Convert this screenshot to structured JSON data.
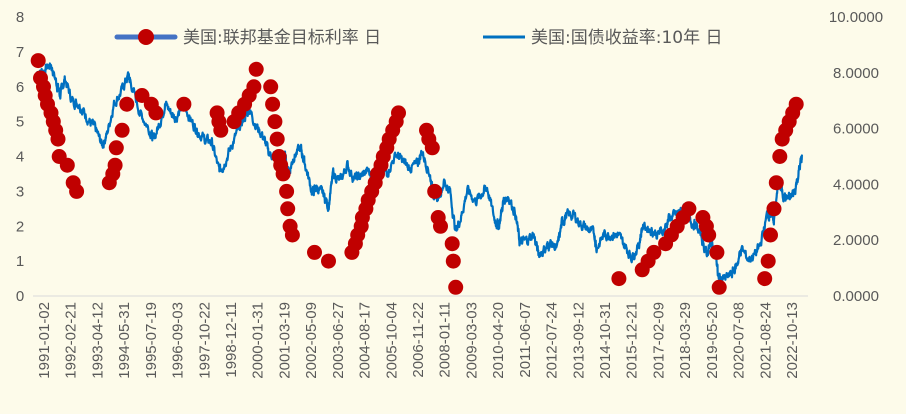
{
  "chart_data": {
    "type": "line",
    "title": "",
    "xlabel": "",
    "legend": [
      {
        "name": "美国:联邦基金目标利率 日",
        "axis": "left",
        "style": "markers",
        "color": "#c00000",
        "line_color": "#4472c4"
      },
      {
        "name": "美国:国债收益率:10年 日",
        "axis": "right",
        "style": "line",
        "color": "#0070c0"
      }
    ],
    "y_left": {
      "min": 0,
      "max": 8,
      "ticks": [
        "0",
        "1",
        "2",
        "3",
        "4",
        "5",
        "6",
        "7",
        "8"
      ]
    },
    "y_right": {
      "min": 0,
      "max": 10,
      "ticks": [
        "0.0000",
        "2.0000",
        "4.0000",
        "6.0000",
        "8.0000",
        "10.0000"
      ]
    },
    "x_range": [
      1991.0,
      2023.8
    ],
    "x_ticks": [
      "1991-01-02",
      "1992-02-21",
      "1993-04-12",
      "1994-05-31",
      "1995-07-19",
      "1996-09-03",
      "1997-10-22",
      "1998-12-11",
      "2000-01-31",
      "2001-03-19",
      "2002-05-09",
      "2003-06-27",
      "2004-08-17",
      "2005-10-04",
      "2006-11-22",
      "2008-01-11",
      "2009-03-03",
      "2010-04-20",
      "2011-06-07",
      "2012-07-24",
      "2013-09-12",
      "2014-10-31",
      "2015-12-21",
      "2017-02-09",
      "2018-03-29",
      "2019-05-20",
      "2020-07-08",
      "2021-08-24",
      "2022-10-13"
    ],
    "series": [
      {
        "name": "美国:联邦基金目标利率 日",
        "axis": "left",
        "points": [
          [
            1991.05,
            6.75
          ],
          [
            1991.15,
            6.25
          ],
          [
            1991.28,
            6.0
          ],
          [
            1991.35,
            5.75
          ],
          [
            1991.45,
            5.5
          ],
          [
            1991.6,
            5.25
          ],
          [
            1991.7,
            5.0
          ],
          [
            1991.8,
            4.75
          ],
          [
            1991.9,
            4.5
          ],
          [
            1991.95,
            4.0
          ],
          [
            1992.3,
            3.75
          ],
          [
            1992.55,
            3.25
          ],
          [
            1992.7,
            3.0
          ],
          [
            1994.1,
            3.25
          ],
          [
            1994.25,
            3.5
          ],
          [
            1994.35,
            3.75
          ],
          [
            1994.4,
            4.25
          ],
          [
            1994.65,
            4.75
          ],
          [
            1994.85,
            5.5
          ],
          [
            1995.5,
            5.75
          ],
          [
            1995.9,
            5.5
          ],
          [
            1996.1,
            5.25
          ],
          [
            1997.3,
            5.5
          ],
          [
            1998.72,
            5.25
          ],
          [
            1998.8,
            5.0
          ],
          [
            1998.88,
            4.75
          ],
          [
            1999.45,
            5.0
          ],
          [
            1999.65,
            5.25
          ],
          [
            1999.9,
            5.5
          ],
          [
            2000.1,
            5.75
          ],
          [
            2000.3,
            6.0
          ],
          [
            2000.4,
            6.5
          ],
          [
            2001.02,
            6.0
          ],
          [
            2001.1,
            5.5
          ],
          [
            2001.2,
            5.0
          ],
          [
            2001.3,
            4.5
          ],
          [
            2001.38,
            4.0
          ],
          [
            2001.45,
            3.75
          ],
          [
            2001.55,
            3.5
          ],
          [
            2001.7,
            3.0
          ],
          [
            2001.75,
            2.5
          ],
          [
            2001.85,
            2.0
          ],
          [
            2001.95,
            1.75
          ],
          [
            2002.9,
            1.25
          ],
          [
            2003.5,
            1.0
          ],
          [
            2004.5,
            1.25
          ],
          [
            2004.65,
            1.5
          ],
          [
            2004.75,
            1.75
          ],
          [
            2004.9,
            2.0
          ],
          [
            2004.95,
            2.25
          ],
          [
            2005.1,
            2.5
          ],
          [
            2005.2,
            2.75
          ],
          [
            2005.35,
            3.0
          ],
          [
            2005.5,
            3.25
          ],
          [
            2005.6,
            3.5
          ],
          [
            2005.75,
            3.75
          ],
          [
            2005.85,
            4.0
          ],
          [
            2006.0,
            4.25
          ],
          [
            2006.1,
            4.5
          ],
          [
            2006.25,
            4.75
          ],
          [
            2006.4,
            5.0
          ],
          [
            2006.5,
            5.25
          ],
          [
            2007.7,
            4.75
          ],
          [
            2007.8,
            4.5
          ],
          [
            2007.95,
            4.25
          ],
          [
            2008.05,
            3.0
          ],
          [
            2008.2,
            2.25
          ],
          [
            2008.3,
            2.0
          ],
          [
            2008.8,
            1.5
          ],
          [
            2008.85,
            1.0
          ],
          [
            2008.95,
            0.25
          ],
          [
            2015.95,
            0.5
          ],
          [
            2016.95,
            0.75
          ],
          [
            2017.2,
            1.0
          ],
          [
            2017.45,
            1.25
          ],
          [
            2017.95,
            1.5
          ],
          [
            2018.2,
            1.75
          ],
          [
            2018.45,
            2.0
          ],
          [
            2018.7,
            2.25
          ],
          [
            2018.95,
            2.5
          ],
          [
            2019.55,
            2.25
          ],
          [
            2019.7,
            2.0
          ],
          [
            2019.8,
            1.75
          ],
          [
            2020.15,
            1.25
          ],
          [
            2020.25,
            0.25
          ],
          [
            2022.2,
            0.5
          ],
          [
            2022.35,
            1.0
          ],
          [
            2022.45,
            1.75
          ],
          [
            2022.6,
            2.5
          ],
          [
            2022.7,
            3.25
          ],
          [
            2022.85,
            4.0
          ],
          [
            2022.95,
            4.5
          ],
          [
            2023.1,
            4.75
          ],
          [
            2023.25,
            5.0
          ],
          [
            2023.4,
            5.25
          ],
          [
            2023.55,
            5.5
          ]
        ]
      },
      {
        "name": "美国:国债收益率:10年 日",
        "axis": "right",
        "points": [
          [
            1991.0,
            8.0
          ],
          [
            1991.3,
            8.1
          ],
          [
            1991.6,
            8.3
          ],
          [
            1991.85,
            7.6
          ],
          [
            1992.0,
            7.2
          ],
          [
            1992.2,
            7.8
          ],
          [
            1992.5,
            7.0
          ],
          [
            1992.8,
            6.9
          ],
          [
            1993.0,
            6.6
          ],
          [
            1993.3,
            6.2
          ],
          [
            1993.5,
            6.0
          ],
          [
            1993.8,
            5.4
          ],
          [
            1994.0,
            5.8
          ],
          [
            1994.3,
            6.9
          ],
          [
            1994.6,
            7.3
          ],
          [
            1994.9,
            7.9
          ],
          [
            1995.0,
            7.7
          ],
          [
            1995.4,
            6.6
          ],
          [
            1995.8,
            6.0
          ],
          [
            1996.0,
            5.6
          ],
          [
            1996.3,
            6.3
          ],
          [
            1996.5,
            6.9
          ],
          [
            1996.8,
            6.5
          ],
          [
            1997.0,
            6.4
          ],
          [
            1997.3,
            6.9
          ],
          [
            1997.6,
            6.3
          ],
          [
            1997.9,
            5.9
          ],
          [
            1998.2,
            5.6
          ],
          [
            1998.5,
            5.5
          ],
          [
            1998.8,
            4.5
          ],
          [
            1999.0,
            4.7
          ],
          [
            1999.3,
            5.3
          ],
          [
            1999.6,
            5.9
          ],
          [
            1999.9,
            6.4
          ],
          [
            2000.1,
            6.7
          ],
          [
            2000.4,
            6.1
          ],
          [
            2000.7,
            5.7
          ],
          [
            2000.95,
            5.1
          ],
          [
            2001.3,
            5.0
          ],
          [
            2001.6,
            5.1
          ],
          [
            2001.8,
            4.4
          ],
          [
            2002.0,
            5.0
          ],
          [
            2002.3,
            5.3
          ],
          [
            2002.5,
            4.7
          ],
          [
            2002.8,
            3.7
          ],
          [
            2003.0,
            3.9
          ],
          [
            2003.3,
            3.6
          ],
          [
            2003.5,
            3.2
          ],
          [
            2003.7,
            4.4
          ],
          [
            2004.0,
            4.1
          ],
          [
            2004.3,
            4.7
          ],
          [
            2004.6,
            4.2
          ],
          [
            2004.9,
            4.3
          ],
          [
            2005.2,
            4.5
          ],
          [
            2005.5,
            4.0
          ],
          [
            2005.8,
            4.5
          ],
          [
            2006.0,
            4.4
          ],
          [
            2006.4,
            5.1
          ],
          [
            2006.7,
            4.8
          ],
          [
            2006.95,
            4.6
          ],
          [
            2007.3,
            4.7
          ],
          [
            2007.5,
            5.2
          ],
          [
            2007.8,
            4.5
          ],
          [
            2008.0,
            3.7
          ],
          [
            2008.2,
            3.5
          ],
          [
            2008.45,
            4.1
          ],
          [
            2008.7,
            3.8
          ],
          [
            2008.95,
            2.3
          ],
          [
            2009.2,
            2.9
          ],
          [
            2009.45,
            3.8
          ],
          [
            2009.8,
            3.4
          ],
          [
            2010.1,
            3.7
          ],
          [
            2010.3,
            3.9
          ],
          [
            2010.6,
            2.8
          ],
          [
            2010.8,
            2.5
          ],
          [
            2011.0,
            3.4
          ],
          [
            2011.2,
            3.6
          ],
          [
            2011.5,
            3.0
          ],
          [
            2011.7,
            1.9
          ],
          [
            2012.0,
            2.0
          ],
          [
            2012.3,
            2.2
          ],
          [
            2012.5,
            1.5
          ],
          [
            2012.8,
            1.7
          ],
          [
            2013.0,
            1.9
          ],
          [
            2013.3,
            1.7
          ],
          [
            2013.5,
            2.6
          ],
          [
            2013.7,
            2.9
          ],
          [
            2014.0,
            2.9
          ],
          [
            2014.3,
            2.6
          ],
          [
            2014.6,
            2.4
          ],
          [
            2014.9,
            2.2
          ],
          [
            2015.0,
            1.7
          ],
          [
            2015.3,
            2.2
          ],
          [
            2015.6,
            2.2
          ],
          [
            2015.9,
            2.2
          ],
          [
            2016.2,
            1.8
          ],
          [
            2016.5,
            1.4
          ],
          [
            2016.8,
            1.8
          ],
          [
            2016.95,
            2.5
          ],
          [
            2017.3,
            2.4
          ],
          [
            2017.6,
            2.2
          ],
          [
            2017.9,
            2.4
          ],
          [
            2018.1,
            2.8
          ],
          [
            2018.4,
            2.9
          ],
          [
            2018.8,
            3.2
          ],
          [
            2018.95,
            2.7
          ],
          [
            2019.2,
            2.6
          ],
          [
            2019.5,
            2.1
          ],
          [
            2019.7,
            1.5
          ],
          [
            2019.9,
            1.9
          ],
          [
            2020.1,
            1.6
          ],
          [
            2020.2,
            0.7
          ],
          [
            2020.5,
            0.6
          ],
          [
            2020.8,
            0.8
          ],
          [
            2021.0,
            1.1
          ],
          [
            2021.2,
            1.7
          ],
          [
            2021.5,
            1.3
          ],
          [
            2021.8,
            1.5
          ],
          [
            2022.0,
            1.8
          ],
          [
            2022.3,
            2.9
          ],
          [
            2022.5,
            3.0
          ],
          [
            2022.6,
            2.7
          ],
          [
            2022.8,
            4.1
          ],
          [
            2022.95,
            3.7
          ],
          [
            2023.1,
            3.5
          ],
          [
            2023.3,
            3.5
          ],
          [
            2023.5,
            3.8
          ],
          [
            2023.7,
            4.6
          ],
          [
            2023.8,
            5.0
          ]
        ]
      }
    ]
  }
}
